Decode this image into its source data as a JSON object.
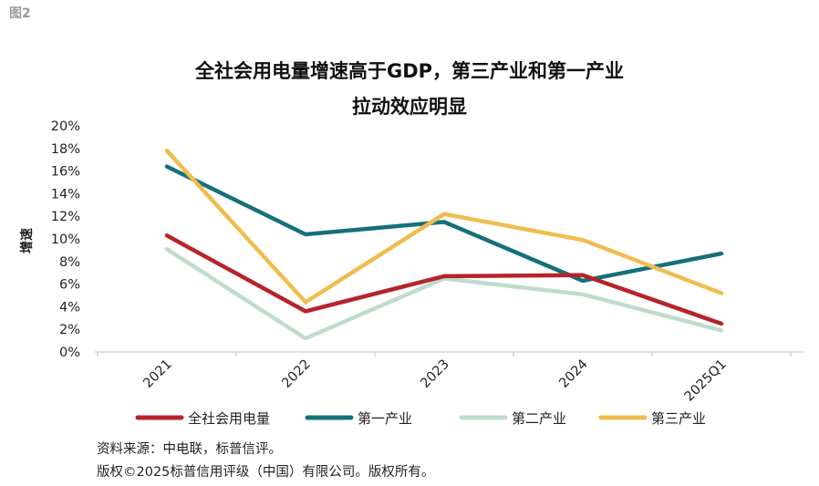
{
  "figure_label": "图2",
  "notes": {
    "source": "资料来源：中电联，标普信评。",
    "copyright": "版权©2025标普信用评级（中国）有限公司。版权所有。"
  },
  "colors": {
    "total": "#B7232A",
    "primary": "#15707A",
    "secondary": "#BFDCCB",
    "tertiary": "#EFBD4F",
    "axis": "#BFBFBF"
  },
  "chart_data": {
    "type": "line",
    "title_line1": "全社会用电量增速高于GDP，第三产业和第一产业",
    "title_line2": "拉动效应明显",
    "ylabel": "增速",
    "xlabel": "",
    "ylim": [
      0,
      20
    ],
    "yticks": [
      "0%",
      "2%",
      "4%",
      "6%",
      "8%",
      "10%",
      "12%",
      "14%",
      "16%",
      "18%",
      "20%"
    ],
    "categories": [
      "2021",
      "2022",
      "2023",
      "2024",
      "2025Q1"
    ],
    "grid": false,
    "legend_position": "bottom",
    "series": [
      {
        "name": "全社会用电量",
        "color_key": "total",
        "values": [
          10.3,
          3.6,
          6.7,
          6.8,
          2.5
        ]
      },
      {
        "name": "第一产业",
        "color_key": "primary",
        "values": [
          16.4,
          10.4,
          11.5,
          6.3,
          8.7
        ]
      },
      {
        "name": "第二产业",
        "color_key": "secondary",
        "values": [
          9.1,
          1.2,
          6.5,
          5.1,
          1.9
        ]
      },
      {
        "name": "第三产业",
        "color_key": "tertiary",
        "values": [
          17.8,
          4.4,
          12.2,
          9.9,
          5.2
        ]
      }
    ]
  }
}
